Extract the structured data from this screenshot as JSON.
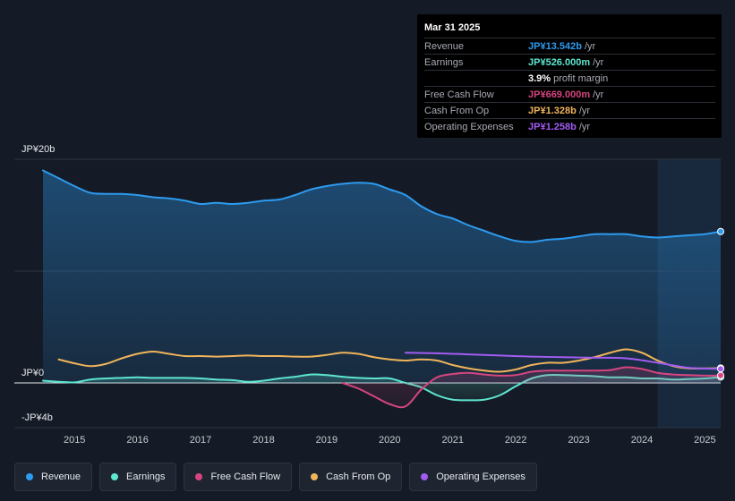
{
  "tooltip": {
    "date": "Mar 31 2025",
    "rows": [
      {
        "name": "Revenue",
        "value": "JP¥13.542b",
        "unit": "/yr",
        "color": "#2d9bf0"
      },
      {
        "name": "Earnings",
        "value": "JP¥526.000m",
        "unit": "/yr",
        "color": "#5ee6d0"
      },
      {
        "name": "",
        "value": "3.9%",
        "unit": "profit margin",
        "color": "#ffffff"
      },
      {
        "name": "Free Cash Flow",
        "value": "JP¥669.000m",
        "unit": "/yr",
        "color": "#d6457f"
      },
      {
        "name": "Cash From Op",
        "value": "JP¥1.328b",
        "unit": "/yr",
        "color": "#f0b45a"
      },
      {
        "name": "Operating Expenses",
        "value": "JP¥1.258b",
        "unit": "/yr",
        "color": "#a35cf2"
      }
    ]
  },
  "legend": [
    {
      "label": "Revenue",
      "color": "#2d9bf0"
    },
    {
      "label": "Earnings",
      "color": "#5ee6d0"
    },
    {
      "label": "Free Cash Flow",
      "color": "#d6457f"
    },
    {
      "label": "Cash From Op",
      "color": "#f0b45a"
    },
    {
      "label": "Operating Expenses",
      "color": "#a35cf2"
    }
  ],
  "chart_data": {
    "type": "area",
    "title": "",
    "xlabel": "",
    "ylabel": "",
    "y_unit": "JP¥ billions",
    "ylim": [
      -4,
      20
    ],
    "xlim": [
      2014.5,
      2025.25
    ],
    "y_tick_labels": [
      {
        "value": 20,
        "label": "JP¥20b"
      },
      {
        "value": 0,
        "label": "JP¥0"
      },
      {
        "value": -4,
        "label": "-JP¥4b"
      }
    ],
    "x_tick_labels": [
      "2015",
      "2016",
      "2017",
      "2018",
      "2019",
      "2020",
      "2021",
      "2022",
      "2023",
      "2024",
      "2025"
    ],
    "x_ticks": [
      2015,
      2016,
      2017,
      2018,
      2019,
      2020,
      2021,
      2022,
      2023,
      2024,
      2025
    ],
    "highlight_start": 2024.25,
    "series": [
      {
        "name": "Revenue",
        "color": "#2d9bf0",
        "fill": true,
        "x": [
          2014.5,
          2014.75,
          2015.0,
          2015.25,
          2015.5,
          2015.75,
          2016.0,
          2016.25,
          2016.5,
          2016.75,
          2017.0,
          2017.25,
          2017.5,
          2017.75,
          2018.0,
          2018.25,
          2018.5,
          2018.75,
          2019.0,
          2019.25,
          2019.5,
          2019.75,
          2020.0,
          2020.25,
          2020.5,
          2020.75,
          2021.0,
          2021.25,
          2021.5,
          2021.75,
          2022.0,
          2022.25,
          2022.5,
          2022.75,
          2023.0,
          2023.25,
          2023.5,
          2023.75,
          2024.0,
          2024.25,
          2024.5,
          2024.75,
          2025.0,
          2025.25
        ],
        "values": [
          19.0,
          18.3,
          17.6,
          17.0,
          16.9,
          16.9,
          16.8,
          16.6,
          16.5,
          16.3,
          16.0,
          16.1,
          16.0,
          16.1,
          16.3,
          16.4,
          16.8,
          17.3,
          17.6,
          17.8,
          17.9,
          17.8,
          17.3,
          16.8,
          15.8,
          15.1,
          14.7,
          14.1,
          13.6,
          13.1,
          12.7,
          12.6,
          12.8,
          12.9,
          13.1,
          13.3,
          13.3,
          13.3,
          13.1,
          13.0,
          13.1,
          13.2,
          13.3,
          13.54
        ]
      },
      {
        "name": "Earnings",
        "color": "#5ee6d0",
        "fill": true,
        "x": [
          2014.5,
          2014.75,
          2015.0,
          2015.25,
          2015.5,
          2015.75,
          2016.0,
          2016.25,
          2016.5,
          2016.75,
          2017.0,
          2017.25,
          2017.5,
          2017.75,
          2018.0,
          2018.25,
          2018.5,
          2018.75,
          2019.0,
          2019.25,
          2019.5,
          2019.75,
          2020.0,
          2020.25,
          2020.5,
          2020.75,
          2021.0,
          2021.25,
          2021.5,
          2021.75,
          2022.0,
          2022.25,
          2022.5,
          2022.75,
          2023.0,
          2023.25,
          2023.5,
          2023.75,
          2024.0,
          2024.25,
          2024.5,
          2024.75,
          2025.0,
          2025.25
        ],
        "values": [
          0.2,
          0.1,
          0.05,
          0.3,
          0.4,
          0.45,
          0.5,
          0.45,
          0.45,
          0.45,
          0.4,
          0.3,
          0.25,
          0.1,
          0.2,
          0.4,
          0.55,
          0.75,
          0.7,
          0.55,
          0.45,
          0.4,
          0.4,
          0.0,
          -0.4,
          -1.1,
          -1.5,
          -1.55,
          -1.5,
          -1.1,
          -0.3,
          0.4,
          0.7,
          0.7,
          0.65,
          0.6,
          0.5,
          0.5,
          0.4,
          0.4,
          0.3,
          0.35,
          0.4,
          0.53
        ]
      },
      {
        "name": "Free Cash Flow",
        "color": "#d6457f",
        "fill": true,
        "x": [
          2019.25,
          2019.5,
          2019.75,
          2020.0,
          2020.25,
          2020.5,
          2020.75,
          2021.0,
          2021.25,
          2021.5,
          2021.75,
          2022.0,
          2022.25,
          2022.5,
          2022.75,
          2023.0,
          2023.25,
          2023.5,
          2023.75,
          2024.0,
          2024.25,
          2024.5,
          2024.75,
          2025.0,
          2025.25
        ],
        "values": [
          0.0,
          -0.5,
          -1.2,
          -1.9,
          -2.1,
          -0.6,
          0.5,
          0.8,
          0.9,
          0.75,
          0.65,
          0.7,
          1.0,
          1.1,
          1.1,
          1.1,
          1.1,
          1.15,
          1.4,
          1.25,
          0.9,
          0.75,
          0.7,
          0.65,
          0.67
        ]
      },
      {
        "name": "Cash From Op",
        "color": "#f0b45a",
        "fill": false,
        "x": [
          2014.75,
          2015.0,
          2015.25,
          2015.5,
          2015.75,
          2016.0,
          2016.25,
          2016.5,
          2016.75,
          2017.0,
          2017.25,
          2017.5,
          2017.75,
          2018.0,
          2018.25,
          2018.5,
          2018.75,
          2019.0,
          2019.25,
          2019.5,
          2019.75,
          2020.0,
          2020.25,
          2020.5,
          2020.75,
          2021.0,
          2021.25,
          2021.5,
          2021.75,
          2022.0,
          2022.25,
          2022.5,
          2022.75,
          2023.0,
          2023.25,
          2023.5,
          2023.75,
          2024.0,
          2024.25,
          2024.5,
          2024.75,
          2025.0,
          2025.25
        ],
        "values": [
          2.1,
          1.75,
          1.5,
          1.7,
          2.2,
          2.6,
          2.8,
          2.6,
          2.4,
          2.4,
          2.35,
          2.4,
          2.45,
          2.4,
          2.4,
          2.35,
          2.35,
          2.5,
          2.7,
          2.6,
          2.3,
          2.1,
          2.0,
          2.1,
          2.0,
          1.6,
          1.3,
          1.1,
          1.0,
          1.2,
          1.6,
          1.8,
          1.8,
          2.0,
          2.3,
          2.7,
          3.0,
          2.7,
          2.0,
          1.5,
          1.3,
          1.3,
          1.33
        ]
      },
      {
        "name": "Operating Expenses",
        "color": "#a35cf2",
        "fill": false,
        "x": [
          2020.25,
          2020.75,
          2021.25,
          2021.75,
          2022.25,
          2022.75,
          2023.25,
          2023.75,
          2024.25,
          2024.75,
          2025.25
        ],
        "values": [
          2.7,
          2.65,
          2.55,
          2.45,
          2.35,
          2.3,
          2.25,
          2.2,
          1.8,
          1.35,
          1.26
        ]
      }
    ]
  }
}
